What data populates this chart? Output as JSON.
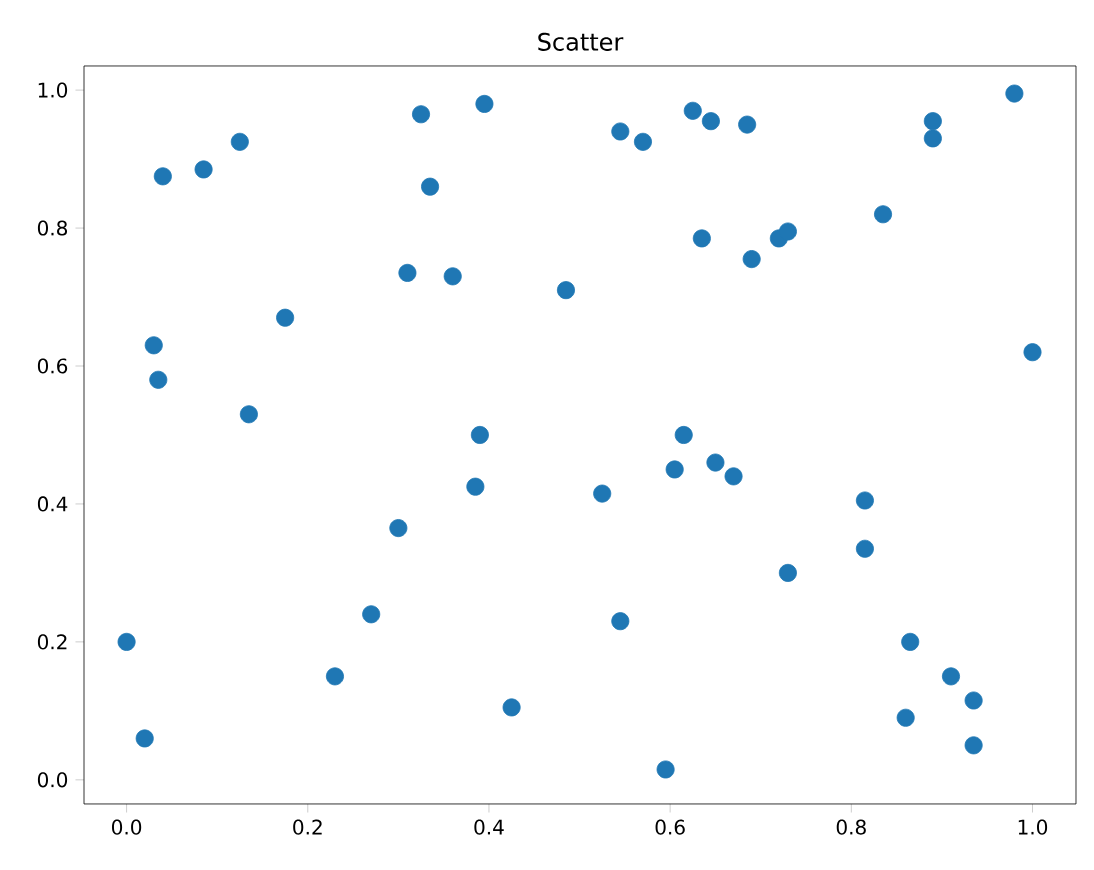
{
  "chart_data": {
    "type": "scatter",
    "title": "Scatter",
    "color": "#1f77b4",
    "x": [
      0.0,
      0.02,
      0.03,
      0.035,
      0.04,
      0.085,
      0.125,
      0.135,
      0.175,
      0.23,
      0.27,
      0.3,
      0.31,
      0.325,
      0.335,
      0.36,
      0.385,
      0.39,
      0.395,
      0.425,
      0.485,
      0.525,
      0.545,
      0.545,
      0.57,
      0.595,
      0.605,
      0.615,
      0.625,
      0.635,
      0.645,
      0.65,
      0.67,
      0.685,
      0.69,
      0.72,
      0.73,
      0.73,
      0.815,
      0.815,
      0.835,
      0.86,
      0.865,
      0.89,
      0.89,
      0.91,
      0.935,
      0.935,
      0.98,
      1.0
    ],
    "values": [
      0.2,
      0.06,
      0.63,
      0.58,
      0.875,
      0.885,
      0.925,
      0.53,
      0.67,
      0.15,
      0.24,
      0.365,
      0.735,
      0.965,
      0.86,
      0.73,
      0.425,
      0.5,
      0.98,
      0.105,
      0.71,
      0.415,
      0.94,
      0.23,
      0.925,
      0.015,
      0.45,
      0.5,
      0.97,
      0.785,
      0.955,
      0.46,
      0.44,
      0.95,
      0.755,
      0.785,
      0.795,
      0.3,
      0.335,
      0.405,
      0.82,
      0.09,
      0.2,
      0.93,
      0.955,
      0.15,
      0.115,
      0.05,
      0.995,
      0.62
    ],
    "xlim": [
      -0.047,
      1.048
    ],
    "ylim": [
      -0.035,
      1.035
    ],
    "xticks": [
      {
        "value": 0,
        "label": "0.0"
      },
      0.2,
      0.4,
      0.6,
      0.8,
      {
        "value": 1,
        "label": "1.0"
      }
    ],
    "yticks": [
      {
        "value": 0,
        "label": "0.0"
      },
      0.2,
      0.4,
      0.6,
      0.8,
      {
        "value": 1,
        "label": "1.0"
      }
    ]
  }
}
